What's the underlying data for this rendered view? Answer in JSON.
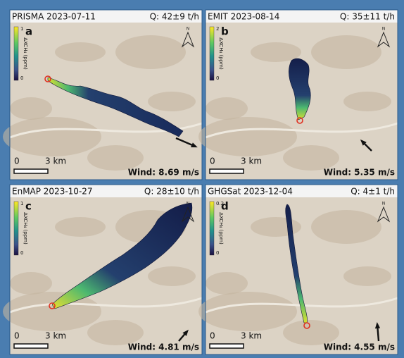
{
  "panels": [
    {
      "sensor_date": "PRISMA 2023-07-11",
      "emission": "Q: 42±9 t/h",
      "letter": "a",
      "colorbar": {
        "label": "ΔXCH₄ (ppm)",
        "ticks": [
          "1",
          "0"
        ]
      },
      "scale": {
        "start": "0",
        "end": "3 km"
      },
      "wind": "Wind: 8.69 m/s"
    },
    {
      "sensor_date": "EMIT 2023-08-14",
      "emission": "Q: 35±11 t/h",
      "letter": "b",
      "colorbar": {
        "label": "ΔXCH₄ (ppm)",
        "ticks": [
          "2",
          "0"
        ]
      },
      "scale": {
        "start": "0",
        "end": "3 km"
      },
      "wind": "Wind: 5.35 m/s"
    },
    {
      "sensor_date": "EnMAP 2023-10-27",
      "emission": "Q: 28±10 t/h",
      "letter": "c",
      "colorbar": {
        "label": "ΔXCH₄ (ppm)",
        "ticks": [
          "1",
          "0"
        ]
      },
      "scale": {
        "start": "0",
        "end": "3 km"
      },
      "wind": "Wind: 4.81 m/s"
    },
    {
      "sensor_date": "GHGSat 2023-12-04",
      "emission": "Q: 4±1 t/h",
      "letter": "d",
      "colorbar": {
        "label": "ΔXCH₄ (ppm)",
        "ticks": [
          "0.2",
          "0"
        ]
      },
      "scale": {
        "start": "0",
        "end": "3 km"
      },
      "wind": "Wind: 4.55 m/s"
    }
  ]
}
